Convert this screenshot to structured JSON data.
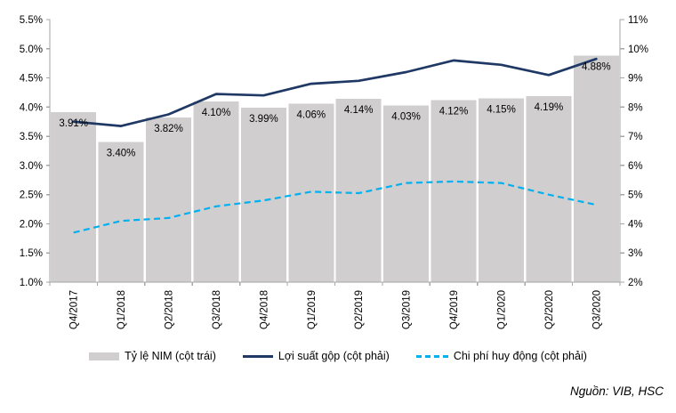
{
  "chart_data": {
    "type": "combo",
    "title": "",
    "categories": [
      "Q4/2017",
      "Q1/2018",
      "Q2/2018",
      "Q3/2018",
      "Q4/2018",
      "Q1/2019",
      "Q2/2019",
      "Q3/2019",
      "Q4/2019",
      "Q1/2020",
      "Q2/2020",
      "Q3/2020"
    ],
    "series": [
      {
        "name": "Tỷ lệ NIM (cột trái)",
        "type": "bar",
        "axis": "left",
        "color": "#D0CECE",
        "values": [
          3.91,
          3.4,
          3.82,
          4.1,
          3.99,
          4.06,
          4.14,
          4.03,
          4.12,
          4.15,
          4.19,
          4.88
        ],
        "labels": [
          "3.91%",
          "3.40%",
          "3.82%",
          "4.10%",
          "3.99%",
          "4.06%",
          "4.14%",
          "4.03%",
          "4.12%",
          "4.15%",
          "4.19%",
          "4.88%"
        ]
      },
      {
        "name": "Lợi suất gộp (cột phải)",
        "type": "line",
        "line_style": "solid",
        "axis": "right",
        "color": "#1F3864",
        "values": [
          7.5,
          7.35,
          7.75,
          8.45,
          8.4,
          8.8,
          8.9,
          9.2,
          9.6,
          9.45,
          9.1,
          9.65
        ]
      },
      {
        "name": "Chi phí huy động (cột phải)",
        "type": "line",
        "line_style": "dashed",
        "axis": "right",
        "color": "#00B0F0",
        "values": [
          3.7,
          4.1,
          4.2,
          4.6,
          4.8,
          5.1,
          5.05,
          5.4,
          5.45,
          5.4,
          5.0,
          4.65
        ]
      }
    ],
    "left_axis": {
      "min": 1.0,
      "max": 5.5,
      "step": 0.5,
      "tick_labels": [
        "5.5%",
        "5.0%",
        "4.5%",
        "4.0%",
        "3.5%",
        "3.0%",
        "2.5%",
        "2.0%",
        "1.5%",
        "1.0%"
      ]
    },
    "right_axis": {
      "min": 2,
      "max": 11,
      "step": 1,
      "tick_labels": [
        "11%",
        "10%",
        "9%",
        "8%",
        "7%",
        "6%",
        "5%",
        "4%",
        "3%",
        "2%"
      ]
    },
    "grid": false,
    "legend_position": "bottom",
    "axis_color": "#A6A6A6",
    "label_color": "#000000"
  },
  "source_note": "Nguồn: VIB, HSC"
}
